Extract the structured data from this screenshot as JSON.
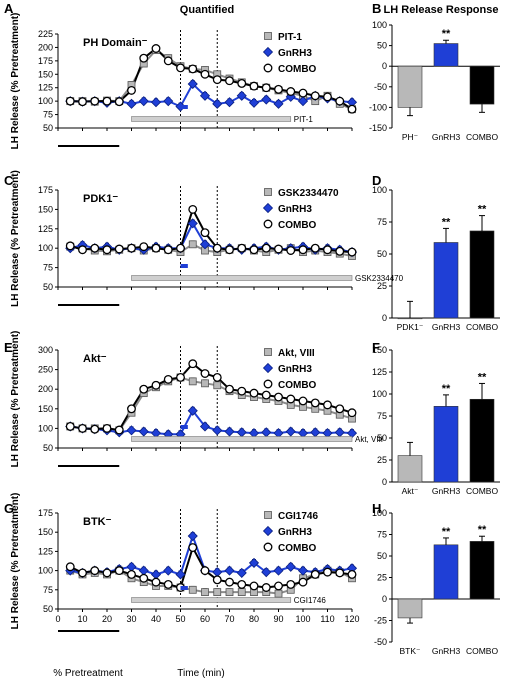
{
  "figure": {
    "header_quantified": "Quantified",
    "header_lh_response": "LH Release Response",
    "x_axis_label": "Time (min)",
    "pretreatment_label": "% Pretreatment"
  },
  "colors": {
    "treatment_gray": "#8c8c8c",
    "gnrh_blue": "#1f3fd6",
    "combo_black": "#000000",
    "bar_fill_gray": "#b8b8b8"
  },
  "chart_data": [
    {
      "panel": "A",
      "type": "line",
      "title": "PH Domain⁻",
      "ylabel": "LH Release (% Pretreatment)",
      "xlabel": "",
      "ylim": [
        50,
        225
      ],
      "yticks": [
        50,
        75,
        100,
        125,
        150,
        175,
        200,
        225
      ],
      "xlim": [
        0,
        120
      ],
      "drug_bar_label": "PIT-1",
      "drug_bar": [
        30,
        95
      ],
      "gnrh_bar": [
        50,
        53
      ],
      "dotted_lines": [
        50,
        65
      ],
      "show_black_bar": true,
      "series": [
        {
          "name": "PIT-1",
          "marker": "square",
          "x": [
            5,
            10,
            15,
            20,
            25,
            30,
            35,
            40,
            45,
            50,
            55,
            60,
            65,
            70,
            75,
            80,
            85,
            90,
            95,
            100,
            105,
            110,
            115,
            120
          ],
          "y": [
            100,
            100,
            99,
            101,
            100,
            130,
            170,
            195,
            180,
            165,
            160,
            158,
            150,
            142,
            135,
            128,
            125,
            120,
            115,
            110,
            100,
            110,
            95,
            85
          ]
        },
        {
          "name": "GnRH3",
          "marker": "diamond",
          "x": [
            5,
            10,
            15,
            20,
            25,
            30,
            35,
            40,
            45,
            50,
            55,
            60,
            65,
            70,
            75,
            80,
            85,
            90,
            95,
            100,
            105,
            110,
            115,
            120
          ],
          "y": [
            100,
            99,
            100,
            97,
            100,
            95,
            100,
            98,
            100,
            90,
            132,
            110,
            95,
            98,
            110,
            97,
            103,
            95,
            108,
            100,
            110,
            105,
            100,
            98
          ]
        },
        {
          "name": "COMBO",
          "marker": "circle",
          "x": [
            5,
            10,
            15,
            20,
            25,
            30,
            35,
            40,
            45,
            50,
            55,
            60,
            65,
            70,
            75,
            80,
            85,
            90,
            95,
            100,
            105,
            110,
            115,
            120
          ],
          "y": [
            100,
            99,
            100,
            100,
            99,
            120,
            180,
            198,
            175,
            162,
            160,
            150,
            140,
            138,
            133,
            128,
            125,
            122,
            118,
            115,
            110,
            108,
            100,
            85
          ]
        }
      ]
    },
    {
      "panel": "C",
      "type": "line",
      "title": "PDK1⁻",
      "ylabel": "LH Release (% Pretreatment)",
      "xlabel": "",
      "ylim": [
        50,
        175
      ],
      "yticks": [
        50,
        75,
        100,
        125,
        150,
        175
      ],
      "xlim": [
        0,
        120
      ],
      "drug_bar_label": "GSK2334470",
      "drug_bar": [
        30,
        120
      ],
      "gnrh_bar": [
        50,
        53
      ],
      "dotted_lines": [
        50,
        65
      ],
      "show_black_bar": true,
      "series": [
        {
          "name": "GSK2334470",
          "marker": "square",
          "x": [
            5,
            10,
            15,
            20,
            25,
            30,
            35,
            40,
            45,
            50,
            55,
            60,
            65,
            70,
            75,
            80,
            85,
            90,
            95,
            100,
            105,
            110,
            115,
            120
          ],
          "y": [
            102,
            100,
            97,
            96,
            98,
            100,
            97,
            100,
            98,
            95,
            105,
            97,
            95,
            98,
            100,
            97,
            95,
            98,
            100,
            95,
            97,
            95,
            93,
            90
          ]
        },
        {
          "name": "GnRH3",
          "marker": "diamond",
          "x": [
            5,
            10,
            15,
            20,
            25,
            30,
            35,
            40,
            45,
            50,
            55,
            60,
            65,
            70,
            75,
            80,
            85,
            90,
            95,
            100,
            105,
            110,
            115,
            120
          ],
          "y": [
            100,
            104,
            100,
            102,
            98,
            100,
            98,
            102,
            100,
            100,
            132,
            105,
            100,
            100,
            98,
            100,
            102,
            98,
            100,
            102,
            98,
            100,
            98,
            95
          ]
        },
        {
          "name": "COMBO",
          "marker": "circle",
          "x": [
            5,
            10,
            15,
            20,
            25,
            30,
            35,
            40,
            45,
            50,
            55,
            60,
            65,
            70,
            75,
            80,
            85,
            90,
            95,
            100,
            105,
            110,
            115,
            120
          ],
          "y": [
            103,
            98,
            100,
            98,
            99,
            100,
            102,
            100,
            98,
            100,
            150,
            120,
            100,
            98,
            100,
            98,
            100,
            99,
            97,
            98,
            100,
            98,
            96,
            95
          ]
        }
      ]
    },
    {
      "panel": "E",
      "type": "line",
      "title": "Akt⁻",
      "ylabel": "LH Release (% Pretreatment)",
      "xlabel": "",
      "ylim": [
        50,
        300
      ],
      "yticks": [
        50,
        100,
        150,
        200,
        250,
        300
      ],
      "xlim": [
        0,
        120
      ],
      "drug_bar_label": "Akt, VIII",
      "drug_bar": [
        30,
        120
      ],
      "gnrh_bar": [
        50,
        53
      ],
      "dotted_lines": [
        50,
        65
      ],
      "show_black_bar": true,
      "series": [
        {
          "name": "Akt, VIII",
          "marker": "square",
          "x": [
            5,
            10,
            15,
            20,
            25,
            30,
            35,
            40,
            45,
            50,
            55,
            60,
            65,
            70,
            75,
            80,
            85,
            90,
            95,
            100,
            105,
            110,
            115,
            120
          ],
          "y": [
            105,
            100,
            100,
            100,
            95,
            140,
            190,
            205,
            220,
            230,
            220,
            215,
            210,
            195,
            185,
            180,
            175,
            170,
            160,
            155,
            150,
            145,
            135,
            125
          ]
        },
        {
          "name": "GnRH3",
          "marker": "diamond",
          "x": [
            5,
            10,
            15,
            20,
            25,
            30,
            35,
            40,
            45,
            50,
            55,
            60,
            65,
            70,
            75,
            80,
            85,
            90,
            95,
            100,
            105,
            110,
            115,
            120
          ],
          "y": [
            105,
            100,
            98,
            95,
            90,
            95,
            92,
            88,
            85,
            85,
            145,
            105,
            95,
            92,
            90,
            88,
            90,
            88,
            92,
            88,
            90,
            88,
            90,
            88
          ]
        },
        {
          "name": "COMBO",
          "marker": "circle",
          "x": [
            5,
            10,
            15,
            20,
            25,
            30,
            35,
            40,
            45,
            50,
            55,
            60,
            65,
            70,
            75,
            80,
            85,
            90,
            95,
            100,
            105,
            110,
            115,
            120
          ],
          "y": [
            105,
            100,
            98,
            100,
            96,
            150,
            200,
            210,
            225,
            230,
            265,
            240,
            230,
            200,
            195,
            190,
            185,
            180,
            175,
            170,
            165,
            160,
            150,
            140
          ]
        }
      ]
    },
    {
      "panel": "G",
      "type": "line",
      "title": "BTK⁻",
      "ylabel": "LH Release (% Pretreatment)",
      "xlabel": "Time (min)",
      "ylim": [
        50,
        175
      ],
      "yticks": [
        50,
        75,
        100,
        125,
        150,
        175
      ],
      "xlim": [
        0,
        120
      ],
      "xticks": [
        0,
        10,
        20,
        30,
        40,
        50,
        60,
        70,
        80,
        90,
        100,
        110,
        120
      ],
      "drug_bar_label": "CGI1746",
      "drug_bar": [
        30,
        95
      ],
      "gnrh_bar": [
        50,
        53
      ],
      "dotted_lines": [
        50,
        65
      ],
      "show_black_bar": true,
      "series": [
        {
          "name": "CGI1746",
          "marker": "square",
          "x": [
            5,
            10,
            15,
            20,
            25,
            30,
            35,
            40,
            45,
            50,
            55,
            60,
            65,
            70,
            75,
            80,
            85,
            90,
            95,
            100,
            105,
            110,
            115,
            120
          ],
          "y": [
            100,
            95,
            97,
            95,
            100,
            90,
            85,
            80,
            80,
            78,
            75,
            72,
            72,
            72,
            72,
            72,
            72,
            70,
            75,
            90,
            95,
            100,
            98,
            90
          ]
        },
        {
          "name": "GnRH3",
          "marker": "diamond",
          "x": [
            5,
            10,
            15,
            20,
            25,
            30,
            35,
            40,
            45,
            50,
            55,
            60,
            65,
            70,
            75,
            80,
            85,
            90,
            95,
            100,
            105,
            110,
            115,
            120
          ],
          "y": [
            100,
            97,
            100,
            98,
            102,
            105,
            100,
            95,
            100,
            95,
            145,
            100,
            98,
            100,
            97,
            110,
            98,
            100,
            105,
            100,
            98,
            102,
            100,
            103
          ]
        },
        {
          "name": "COMBO",
          "marker": "circle",
          "x": [
            5,
            10,
            15,
            20,
            25,
            30,
            35,
            40,
            45,
            50,
            55,
            60,
            65,
            70,
            75,
            80,
            85,
            90,
            95,
            100,
            105,
            110,
            115,
            120
          ],
          "y": [
            105,
            97,
            100,
            97,
            100,
            95,
            90,
            85,
            82,
            78,
            130,
            100,
            88,
            85,
            82,
            80,
            78,
            80,
            82,
            85,
            95,
            98,
            97,
            95
          ]
        }
      ]
    },
    {
      "panel": "B",
      "type": "bar",
      "categories": [
        "PH⁻",
        "GnRH3",
        "COMBO"
      ],
      "values": [
        -100,
        55,
        -92
      ],
      "errors": [
        20,
        8,
        20
      ],
      "significance": [
        "",
        "**",
        ""
      ],
      "ylim": [
        -150,
        100
      ],
      "yticks": [
        -150,
        -100,
        -50,
        0,
        50,
        100
      ]
    },
    {
      "panel": "D",
      "type": "bar",
      "categories": [
        "PDK1⁻",
        "GnRH3",
        "COMBO"
      ],
      "values": [
        0,
        59,
        68
      ],
      "errors": [
        13,
        11,
        12
      ],
      "significance": [
        "",
        "**",
        "**"
      ],
      "ylim": [
        0,
        100
      ],
      "yticks": [
        0,
        25,
        50,
        75,
        100
      ]
    },
    {
      "panel": "F",
      "type": "bar",
      "categories": [
        "Akt⁻",
        "GnRH3",
        "COMBO"
      ],
      "values": [
        30,
        86,
        94
      ],
      "errors": [
        15,
        13,
        18
      ],
      "significance": [
        "",
        "**",
        "**"
      ],
      "ylim": [
        0,
        150
      ],
      "yticks": [
        0,
        25,
        50,
        75,
        100,
        125,
        150
      ]
    },
    {
      "panel": "H",
      "type": "bar",
      "categories": [
        "BTK⁻",
        "GnRH3",
        "COMBO"
      ],
      "values": [
        -22,
        63,
        67
      ],
      "errors": [
        6,
        8,
        6
      ],
      "significance": [
        "",
        "**",
        "**"
      ],
      "ylim": [
        -50,
        100
      ],
      "yticks": [
        -50,
        -25,
        0,
        25,
        50,
        75,
        100
      ]
    }
  ]
}
